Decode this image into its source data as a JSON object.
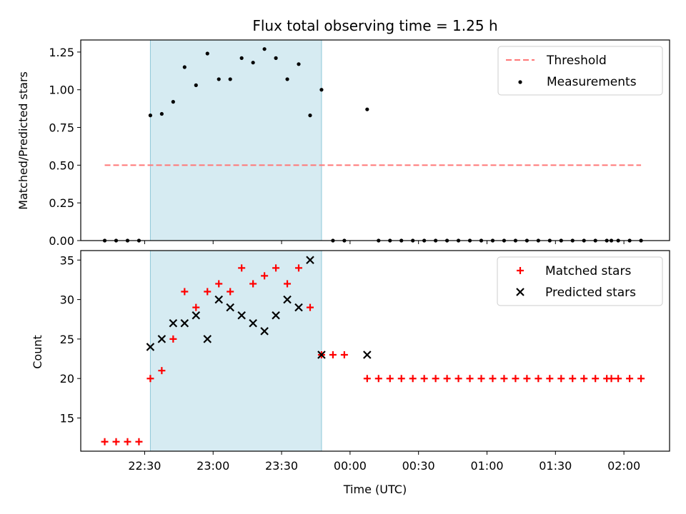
{
  "chart_data": [
    {
      "type": "scatter",
      "title": "Flux total observing time = 1.25 h",
      "xlabel": "",
      "ylabel": "Matched/Predicted stars",
      "ylim": [
        0,
        1.33
      ],
      "yticks": [
        "0.00",
        "0.25",
        "0.50",
        "0.75",
        "1.00",
        "1.25"
      ],
      "ytick_values": [
        0,
        0.25,
        0.5,
        0.75,
        1.0,
        1.25
      ],
      "x_unit": "minutes from 22:30 UTC",
      "legend_position": "upper-right",
      "observing_window": [
        2.5,
        77.5
      ],
      "threshold": {
        "name": "Threshold",
        "value": 0.5,
        "x_range": [
          -17.5,
          217.5
        ],
        "color": "#ff7777"
      },
      "series": [
        {
          "name": "Measurements",
          "color": "#000000",
          "x": [
            -17.5,
            -12.5,
            -7.5,
            -2.5,
            2.5,
            7.5,
            12.5,
            17.5,
            22.5,
            27.5,
            32.5,
            37.5,
            42.5,
            47.5,
            52.5,
            57.5,
            62.5,
            67.5,
            72.5,
            77.5,
            82.5,
            87.5,
            97.5,
            102.5,
            107.5,
            112.5,
            117.5,
            122.5,
            127.5,
            132.5,
            137.5,
            142.5,
            147.5,
            152.5,
            157.5,
            162.5,
            167.5,
            172.5,
            177.5,
            182.5,
            187.5,
            192.5,
            197.5,
            202.5,
            204.5,
            207.5,
            212.5,
            217.5
          ],
          "y": [
            0,
            0,
            0,
            0,
            0.83,
            0.84,
            0.92,
            1.15,
            1.03,
            1.24,
            1.07,
            1.07,
            1.21,
            1.18,
            1.27,
            1.21,
            1.07,
            1.17,
            0.83,
            1.0,
            0,
            0,
            0.87,
            0,
            0,
            0,
            0,
            0,
            0,
            0,
            0,
            0,
            0,
            0,
            0,
            0,
            0,
            0,
            0,
            0,
            0,
            0,
            0,
            0,
            0,
            0,
            0,
            0
          ]
        }
      ]
    },
    {
      "type": "scatter",
      "title": "",
      "xlabel": "Time (UTC)",
      "ylabel": "Count",
      "ylim": [
        10.8,
        36.2
      ],
      "yticks": [
        "15",
        "20",
        "25",
        "30",
        "35"
      ],
      "ytick_values": [
        15,
        20,
        25,
        30,
        35
      ],
      "xlim": [
        -28,
        230
      ],
      "x_unit": "minutes from 22:30 UTC",
      "xticks": [
        "22:30",
        "23:00",
        "23:30",
        "00:00",
        "00:30",
        "01:00",
        "01:30",
        "02:00"
      ],
      "xtick_values": [
        0,
        30,
        60,
        90,
        120,
        150,
        180,
        210
      ],
      "legend_position": "upper-right",
      "observing_window": [
        2.5,
        77.5
      ],
      "series": [
        {
          "name": "Matched stars",
          "marker": "+",
          "color": "#ff0000",
          "x": [
            -17.5,
            -12.5,
            -7.5,
            -2.5,
            2.5,
            7.5,
            12.5,
            17.5,
            22.5,
            27.5,
            32.5,
            37.5,
            42.5,
            47.5,
            52.5,
            57.5,
            62.5,
            67.5,
            72.5,
            77.5,
            82.5,
            87.5,
            97.5,
            102.5,
            107.5,
            112.5,
            117.5,
            122.5,
            127.5,
            132.5,
            137.5,
            142.5,
            147.5,
            152.5,
            157.5,
            162.5,
            167.5,
            172.5,
            177.5,
            182.5,
            187.5,
            192.5,
            197.5,
            202.5,
            204.5,
            207.5,
            212.5,
            217.5
          ],
          "y": [
            12,
            12,
            12,
            12,
            20,
            21,
            25,
            31,
            29,
            31,
            32,
            31,
            34,
            32,
            33,
            34,
            32,
            34,
            29,
            23,
            23,
            23,
            20,
            20,
            20,
            20,
            20,
            20,
            20,
            20,
            20,
            20,
            20,
            20,
            20,
            20,
            20,
            20,
            20,
            20,
            20,
            20,
            20,
            20,
            20,
            20,
            20,
            20
          ]
        },
        {
          "name": "Predicted stars",
          "marker": "x",
          "color": "#000000",
          "x": [
            2.5,
            7.5,
            12.5,
            17.5,
            22.5,
            27.5,
            32.5,
            37.5,
            42.5,
            47.5,
            52.5,
            57.5,
            62.5,
            67.5,
            72.5,
            77.5,
            97.5
          ],
          "y": [
            24,
            25,
            27,
            27,
            28,
            25,
            30,
            29,
            28,
            27,
            26,
            28,
            30,
            29,
            35,
            23,
            23
          ]
        }
      ]
    }
  ]
}
